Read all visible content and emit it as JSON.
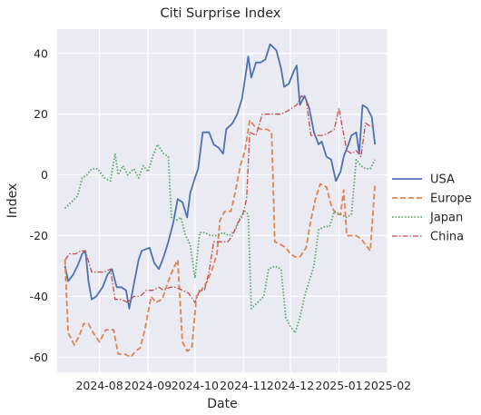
{
  "chart_data": {
    "type": "line",
    "title": "Citi Surprise Index",
    "xlabel": "Date",
    "ylabel": "Index",
    "xlim": [
      "2024-07-05",
      "2025-02-01"
    ],
    "ylim": [
      -65,
      48
    ],
    "x_ticks": [
      "2024-08",
      "2024-09",
      "2024-10",
      "2024-11",
      "2024-12",
      "2025-01",
      "2025-02"
    ],
    "y_ticks": [
      -60,
      -40,
      -20,
      0,
      20,
      40
    ],
    "grid": true,
    "legend_position": "center-right",
    "series": [
      {
        "name": "USA",
        "color": "#4c72b0",
        "dash": "solid",
        "points": [
          [
            "2024-07-10",
            -30
          ],
          [
            "2024-07-12",
            -35
          ],
          [
            "2024-07-15",
            -33
          ],
          [
            "2024-07-18",
            -30
          ],
          [
            "2024-07-21",
            -26
          ],
          [
            "2024-07-23",
            -25
          ],
          [
            "2024-07-25",
            -35
          ],
          [
            "2024-07-27",
            -41
          ],
          [
            "2024-07-30",
            -40
          ],
          [
            "2024-08-03",
            -37
          ],
          [
            "2024-08-06",
            -33
          ],
          [
            "2024-08-09",
            -31
          ],
          [
            "2024-08-12",
            -37
          ],
          [
            "2024-08-15",
            -37
          ],
          [
            "2024-08-18",
            -38
          ],
          [
            "2024-08-20",
            -44
          ],
          [
            "2024-08-23",
            -36
          ],
          [
            "2024-08-26",
            -28
          ],
          [
            "2024-08-28",
            -25
          ],
          [
            "2024-09-02",
            -24
          ],
          [
            "2024-09-05",
            -29
          ],
          [
            "2024-09-08",
            -31
          ],
          [
            "2024-09-11",
            -27
          ],
          [
            "2024-09-14",
            -22
          ],
          [
            "2024-09-17",
            -16
          ],
          [
            "2024-09-20",
            -8
          ],
          [
            "2024-09-23",
            -9
          ],
          [
            "2024-09-26",
            -14
          ],
          [
            "2024-09-28",
            -6
          ],
          [
            "2024-10-01",
            -1
          ],
          [
            "2024-10-03",
            2
          ],
          [
            "2024-10-06",
            14
          ],
          [
            "2024-10-10",
            14
          ],
          [
            "2024-10-13",
            10
          ],
          [
            "2024-10-16",
            9
          ],
          [
            "2024-10-19",
            7
          ],
          [
            "2024-10-21",
            15
          ],
          [
            "2024-10-25",
            17
          ],
          [
            "2024-10-28",
            20
          ],
          [
            "2024-10-31",
            25
          ],
          [
            "2024-11-03",
            35
          ],
          [
            "2024-11-04",
            39
          ],
          [
            "2024-11-06",
            32
          ],
          [
            "2024-11-09",
            37
          ],
          [
            "2024-11-12",
            37
          ],
          [
            "2024-11-15",
            38
          ],
          [
            "2024-11-18",
            43
          ],
          [
            "2024-11-22",
            41
          ],
          [
            "2024-11-25",
            35
          ],
          [
            "2024-11-27",
            29
          ],
          [
            "2024-11-30",
            30
          ],
          [
            "2024-12-03",
            34
          ],
          [
            "2024-12-05",
            36
          ],
          [
            "2024-12-07",
            23
          ],
          [
            "2024-12-10",
            26
          ],
          [
            "2024-12-13",
            22
          ],
          [
            "2024-12-16",
            14
          ],
          [
            "2024-12-19",
            10
          ],
          [
            "2024-12-21",
            11
          ],
          [
            "2024-12-24",
            6
          ],
          [
            "2024-12-27",
            5
          ],
          [
            "2024-12-30",
            -2
          ],
          [
            "2025-01-02",
            1
          ],
          [
            "2025-01-04",
            6
          ],
          [
            "2025-01-07",
            10
          ],
          [
            "2025-01-09",
            13
          ],
          [
            "2025-01-12",
            14
          ],
          [
            "2025-01-14",
            7
          ],
          [
            "2025-01-16",
            23
          ],
          [
            "2025-01-19",
            22
          ],
          [
            "2025-01-22",
            19
          ],
          [
            "2025-01-24",
            10
          ]
        ]
      },
      {
        "name": "Europe",
        "color": "#dd8452",
        "dash": "dashed",
        "points": [
          [
            "2024-07-10",
            -28
          ],
          [
            "2024-07-12",
            -52
          ],
          [
            "2024-07-16",
            -56
          ],
          [
            "2024-07-19",
            -53
          ],
          [
            "2024-07-22",
            -49
          ],
          [
            "2024-07-25",
            -49
          ],
          [
            "2024-07-28",
            -52
          ],
          [
            "2024-08-01",
            -55
          ],
          [
            "2024-08-05",
            -51
          ],
          [
            "2024-08-10",
            -51
          ],
          [
            "2024-08-13",
            -59
          ],
          [
            "2024-08-17",
            -59
          ],
          [
            "2024-08-21",
            -60
          ],
          [
            "2024-08-24",
            -58
          ],
          [
            "2024-08-27",
            -57
          ],
          [
            "2024-08-30",
            -51
          ],
          [
            "2024-09-03",
            -40
          ],
          [
            "2024-09-06",
            -42
          ],
          [
            "2024-09-10",
            -41
          ],
          [
            "2024-09-14",
            -35
          ],
          [
            "2024-09-17",
            -31
          ],
          [
            "2024-09-20",
            -28
          ],
          [
            "2024-09-23",
            -55
          ],
          [
            "2024-09-26",
            -58
          ],
          [
            "2024-09-29",
            -57
          ],
          [
            "2024-10-02",
            -40
          ],
          [
            "2024-10-05",
            -38
          ],
          [
            "2024-10-09",
            -35
          ],
          [
            "2024-10-12",
            -31
          ],
          [
            "2024-10-15",
            -26
          ],
          [
            "2024-10-17",
            -15
          ],
          [
            "2024-10-20",
            -12
          ],
          [
            "2024-10-24",
            -12
          ],
          [
            "2024-10-27",
            -5
          ],
          [
            "2024-10-30",
            3
          ],
          [
            "2024-11-02",
            8
          ],
          [
            "2024-11-05",
            18
          ],
          [
            "2024-11-08",
            16
          ],
          [
            "2024-11-12",
            15
          ],
          [
            "2024-11-16",
            15
          ],
          [
            "2024-11-19",
            14
          ],
          [
            "2024-11-21",
            -22
          ],
          [
            "2024-11-25",
            -23
          ],
          [
            "2024-11-28",
            -24
          ],
          [
            "2024-12-01",
            -26
          ],
          [
            "2024-12-04",
            -27
          ],
          [
            "2024-12-07",
            -27
          ],
          [
            "2024-12-11",
            -24
          ],
          [
            "2024-12-14",
            -15
          ],
          [
            "2024-12-17",
            -8
          ],
          [
            "2024-12-20",
            -3
          ],
          [
            "2024-12-24",
            -4
          ],
          [
            "2024-12-27",
            -10
          ],
          [
            "2024-12-30",
            -13
          ],
          [
            "2025-01-02",
            -13
          ],
          [
            "2025-01-04",
            -5
          ],
          [
            "2025-01-06",
            -20
          ],
          [
            "2025-01-09",
            -20
          ],
          [
            "2025-01-12",
            -20
          ],
          [
            "2025-01-15",
            -21
          ],
          [
            "2025-01-18",
            -23
          ],
          [
            "2025-01-21",
            -25
          ],
          [
            "2025-01-24",
            -3
          ]
        ]
      },
      {
        "name": "Japan",
        "color": "#55a868",
        "dash": "dotted",
        "points": [
          [
            "2024-07-10",
            -11
          ],
          [
            "2024-07-14",
            -9
          ],
          [
            "2024-07-18",
            -7
          ],
          [
            "2024-07-21",
            -1
          ],
          [
            "2024-07-24",
            0
          ],
          [
            "2024-07-27",
            2
          ],
          [
            "2024-07-31",
            2
          ],
          [
            "2024-08-04",
            -1
          ],
          [
            "2024-08-08",
            -2
          ],
          [
            "2024-08-11",
            7
          ],
          [
            "2024-08-13",
            0
          ],
          [
            "2024-08-16",
            3
          ],
          [
            "2024-08-19",
            0
          ],
          [
            "2024-08-23",
            2
          ],
          [
            "2024-08-26",
            -1
          ],
          [
            "2024-08-29",
            3
          ],
          [
            "2024-09-01",
            1
          ],
          [
            "2024-09-04",
            6
          ],
          [
            "2024-09-07",
            10
          ],
          [
            "2024-09-11",
            7
          ],
          [
            "2024-09-14",
            6
          ],
          [
            "2024-09-16",
            -14
          ],
          [
            "2024-09-19",
            -15
          ],
          [
            "2024-09-22",
            -14
          ],
          [
            "2024-09-25",
            -20
          ],
          [
            "2024-09-28",
            -23
          ],
          [
            "2024-10-01",
            -34
          ],
          [
            "2024-10-04",
            -19
          ],
          [
            "2024-10-07",
            -19
          ],
          [
            "2024-10-11",
            -20
          ],
          [
            "2024-10-15",
            -20
          ],
          [
            "2024-10-19",
            -19
          ],
          [
            "2024-10-23",
            -20
          ],
          [
            "2024-10-27",
            -18
          ],
          [
            "2024-10-30",
            -14
          ],
          [
            "2024-11-02",
            -12
          ],
          [
            "2024-11-04",
            -13
          ],
          [
            "2024-11-06",
            -44
          ],
          [
            "2024-11-10",
            -42
          ],
          [
            "2024-11-14",
            -40
          ],
          [
            "2024-11-17",
            -31
          ],
          [
            "2024-11-21",
            -30
          ],
          [
            "2024-11-25",
            -31
          ],
          [
            "2024-11-28",
            -47
          ],
          [
            "2024-12-01",
            -50
          ],
          [
            "2024-12-04",
            -52
          ],
          [
            "2024-12-07",
            -47
          ],
          [
            "2024-12-10",
            -40
          ],
          [
            "2024-12-13",
            -35
          ],
          [
            "2024-12-16",
            -30
          ],
          [
            "2024-12-19",
            -18
          ],
          [
            "2024-12-23",
            -17
          ],
          [
            "2024-12-26",
            -17
          ],
          [
            "2024-12-29",
            -12
          ],
          [
            "2025-01-02",
            -13
          ],
          [
            "2025-01-06",
            -14
          ],
          [
            "2025-01-09",
            -13
          ],
          [
            "2025-01-12",
            5
          ],
          [
            "2025-01-15",
            3
          ],
          [
            "2025-01-18",
            2
          ],
          [
            "2025-01-21",
            2
          ],
          [
            "2025-01-24",
            5
          ]
        ]
      },
      {
        "name": "China",
        "color": "#c44e52",
        "dash": "dashdot",
        "points": [
          [
            "2024-07-10",
            -28
          ],
          [
            "2024-07-13",
            -26
          ],
          [
            "2024-07-17",
            -26
          ],
          [
            "2024-07-20",
            -25
          ],
          [
            "2024-07-23",
            -25
          ],
          [
            "2024-07-27",
            -32
          ],
          [
            "2024-07-31",
            -32
          ],
          [
            "2024-08-04",
            -32
          ],
          [
            "2024-08-08",
            -31
          ],
          [
            "2024-08-11",
            -41
          ],
          [
            "2024-08-15",
            -41
          ],
          [
            "2024-08-19",
            -42
          ],
          [
            "2024-08-23",
            -40
          ],
          [
            "2024-08-27",
            -40
          ],
          [
            "2024-08-31",
            -38
          ],
          [
            "2024-09-04",
            -38
          ],
          [
            "2024-09-08",
            -37
          ],
          [
            "2024-09-11",
            -38
          ],
          [
            "2024-09-15",
            -37
          ],
          [
            "2024-09-19",
            -37
          ],
          [
            "2024-09-23",
            -38
          ],
          [
            "2024-09-27",
            -39
          ],
          [
            "2024-10-01",
            -42
          ],
          [
            "2024-10-04",
            -38
          ],
          [
            "2024-10-07",
            -38
          ],
          [
            "2024-10-10",
            -32
          ],
          [
            "2024-10-13",
            -22
          ],
          [
            "2024-10-16",
            -22
          ],
          [
            "2024-10-19",
            -22
          ],
          [
            "2024-10-22",
            -22
          ],
          [
            "2024-10-25",
            -20
          ],
          [
            "2024-10-28",
            -16
          ],
          [
            "2024-10-31",
            -14
          ],
          [
            "2024-11-03",
            -8
          ],
          [
            "2024-11-05",
            14
          ],
          [
            "2024-11-09",
            13
          ],
          [
            "2024-11-13",
            20
          ],
          [
            "2024-11-17",
            20
          ],
          [
            "2024-11-21",
            20
          ],
          [
            "2024-11-25",
            20
          ],
          [
            "2024-11-29",
            21
          ],
          [
            "2024-12-02",
            22
          ],
          [
            "2024-12-05",
            23
          ],
          [
            "2024-12-08",
            26
          ],
          [
            "2024-12-11",
            25
          ],
          [
            "2024-12-14",
            13
          ],
          [
            "2024-12-18",
            13
          ],
          [
            "2024-12-22",
            13
          ],
          [
            "2024-12-26",
            14
          ],
          [
            "2024-12-29",
            15
          ],
          [
            "2025-01-01",
            22
          ],
          [
            "2025-01-03",
            16
          ],
          [
            "2025-01-06",
            8
          ],
          [
            "2025-01-09",
            7
          ],
          [
            "2025-01-12",
            8
          ],
          [
            "2025-01-15",
            6
          ],
          [
            "2025-01-18",
            17
          ],
          [
            "2025-01-21",
            16
          ],
          [
            "2025-01-24",
            16
          ]
        ]
      }
    ]
  }
}
